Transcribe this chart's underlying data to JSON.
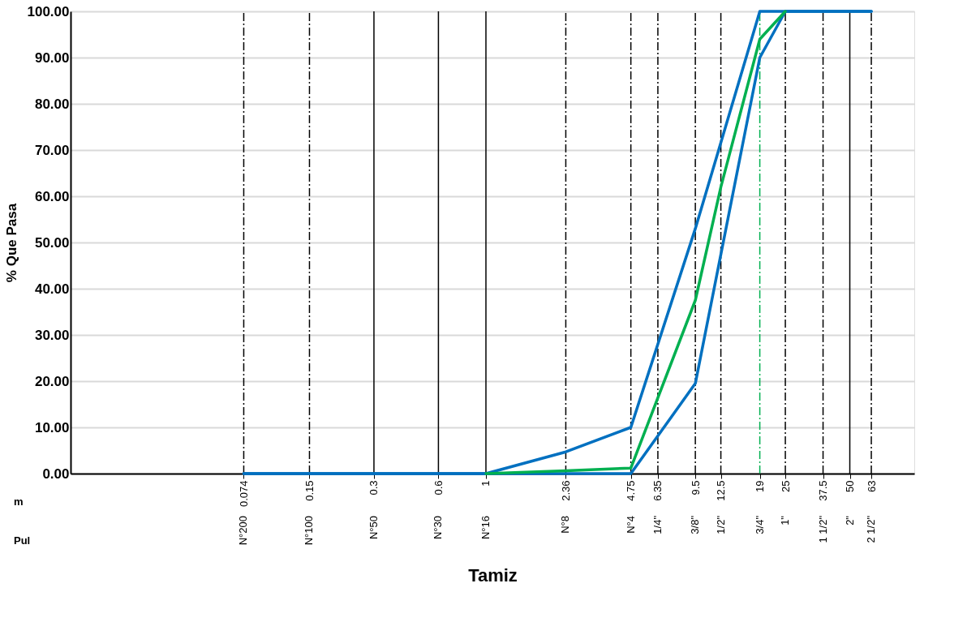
{
  "chart_data": {
    "type": "line",
    "xlabel": "Tamiz",
    "ylabel": "% Que Pasa",
    "log": "x",
    "grid": "y",
    "xlim": [
      0.0115,
      100
    ],
    "ylim": [
      0,
      100
    ],
    "xticks": [
      0.074,
      0.15,
      0.3,
      0.6,
      1,
      2.36,
      4.75,
      6.35,
      9.5,
      12.5,
      19,
      25,
      37.5,
      50,
      63
    ],
    "yticks": [
      {
        "value": 0,
        "label": "0.00"
      },
      {
        "value": 10,
        "label": "10.00"
      },
      {
        "value": 20,
        "label": "20.00"
      },
      {
        "value": 30,
        "label": "30.00"
      },
      {
        "value": 40,
        "label": "40.00"
      },
      {
        "value": 50,
        "label": "50.00"
      },
      {
        "value": 60,
        "label": "60.00"
      },
      {
        "value": 70,
        "label": "70.00"
      },
      {
        "value": 80,
        "label": "80.00"
      },
      {
        "value": 90,
        "label": "90.00"
      },
      {
        "value": 100,
        "label": "100.00"
      }
    ],
    "series": [
      {
        "color": "#0070c0",
        "x": [
          0.074,
          0.15,
          0.3,
          0.6,
          1,
          2.36,
          4.75,
          9.5,
          19,
          25,
          37.5,
          50,
          63
        ],
        "values": [
          0,
          0,
          0,
          0,
          0,
          4.7,
          10,
          53,
          100,
          100,
          100,
          100,
          100
        ]
      },
      {
        "color": "#0070c0",
        "x": [
          0.074,
          0.15,
          0.3,
          0.6,
          1,
          2.36,
          4.75,
          9.5,
          19,
          25,
          37.5,
          50,
          63
        ],
        "values": [
          0,
          0,
          0,
          0,
          0,
          0,
          0,
          19.5,
          90,
          100,
          100,
          100,
          100
        ]
      },
      {
        "color": "#00b050",
        "x": [
          1,
          2.36,
          4.75,
          9.5,
          12.5,
          19,
          25
        ],
        "values": [
          0,
          0.6,
          1.2,
          37.5,
          62,
          94,
          100
        ]
      }
    ],
    "ref_lines": [
      {
        "axis": "x",
        "value": 0.074,
        "color": "#000000",
        "line_style": "dashed"
      },
      {
        "axis": "x",
        "value": 0.15,
        "color": "#000000",
        "line_style": "dashed"
      },
      {
        "axis": "x",
        "value": 0.3,
        "color": "#000000",
        "line_style": "solid"
      },
      {
        "axis": "x",
        "value": 0.6,
        "color": "#000000",
        "line_style": "solid"
      },
      {
        "axis": "x",
        "value": 1,
        "color": "#000000",
        "line_style": "solid"
      },
      {
        "axis": "x",
        "value": 2.36,
        "color": "#000000",
        "line_style": "dashed"
      },
      {
        "axis": "x",
        "value": 4.75,
        "color": "#000000",
        "line_style": "dashed"
      },
      {
        "axis": "x",
        "value": 6.35,
        "color": "#000000",
        "line_style": "dashed"
      },
      {
        "axis": "x",
        "value": 9.5,
        "color": "#000000",
        "line_style": "dashed"
      },
      {
        "axis": "x",
        "value": 12.5,
        "color": "#000000",
        "line_style": "dashed"
      },
      {
        "axis": "x",
        "value": 19,
        "color": "#00b050",
        "line_style": "dashed"
      },
      {
        "axis": "x",
        "value": 25,
        "color": "#000000",
        "line_style": "dashed"
      },
      {
        "axis": "x",
        "value": 37.5,
        "color": "#000000",
        "line_style": "dashed"
      },
      {
        "axis": "x",
        "value": 50,
        "color": "#000000",
        "line_style": "solid"
      },
      {
        "axis": "x",
        "value": 63,
        "color": "#000000",
        "line_style": "dashed"
      }
    ],
    "annotations": [
      "m",
      "Pul",
      "N°200",
      "N°100",
      "N°50",
      "N°30",
      "N°16",
      "N°8",
      "N°4",
      "1/4\"",
      "3/8\"",
      "1/2\"",
      "3/4\"",
      "1\"",
      "1 1/2\"",
      "2\"",
      "2 1/2\""
    ]
  }
}
